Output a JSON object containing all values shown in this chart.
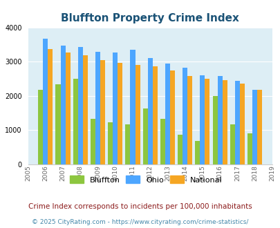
{
  "title": "Bluffton Property Crime Index",
  "years": [
    2005,
    2006,
    2007,
    2008,
    2009,
    2010,
    2011,
    2012,
    2013,
    2014,
    2015,
    2016,
    2017,
    2018,
    2019
  ],
  "bluffton": [
    null,
    2180,
    2340,
    2490,
    1330,
    1230,
    1160,
    1620,
    1330,
    860,
    680,
    2000,
    1160,
    900,
    null
  ],
  "ohio": [
    null,
    3660,
    3470,
    3430,
    3290,
    3260,
    3350,
    3110,
    2950,
    2820,
    2600,
    2580,
    2430,
    2180,
    null
  ],
  "national": [
    null,
    3360,
    3270,
    3190,
    3040,
    2960,
    2910,
    2860,
    2730,
    2580,
    2490,
    2460,
    2350,
    2170,
    null
  ],
  "bluffton_color": "#8dc63f",
  "ohio_color": "#4da6ff",
  "national_color": "#f5a623",
  "bg_color": "#ddeef5",
  "ylim": [
    0,
    4000
  ],
  "yticks": [
    0,
    1000,
    2000,
    3000,
    4000
  ],
  "subtitle": "Crime Index corresponds to incidents per 100,000 inhabitants",
  "footer": "© 2025 CityRating.com - https://www.cityrating.com/crime-statistics/",
  "title_color": "#1a5276",
  "subtitle_color": "#8b1a1a",
  "footer_color": "#4488aa",
  "bar_years": [
    2006,
    2007,
    2008,
    2009,
    2010,
    2011,
    2012,
    2013,
    2014,
    2015,
    2016,
    2017,
    2018
  ],
  "legend_labels": [
    "Bluffton",
    "Ohio",
    "National"
  ]
}
